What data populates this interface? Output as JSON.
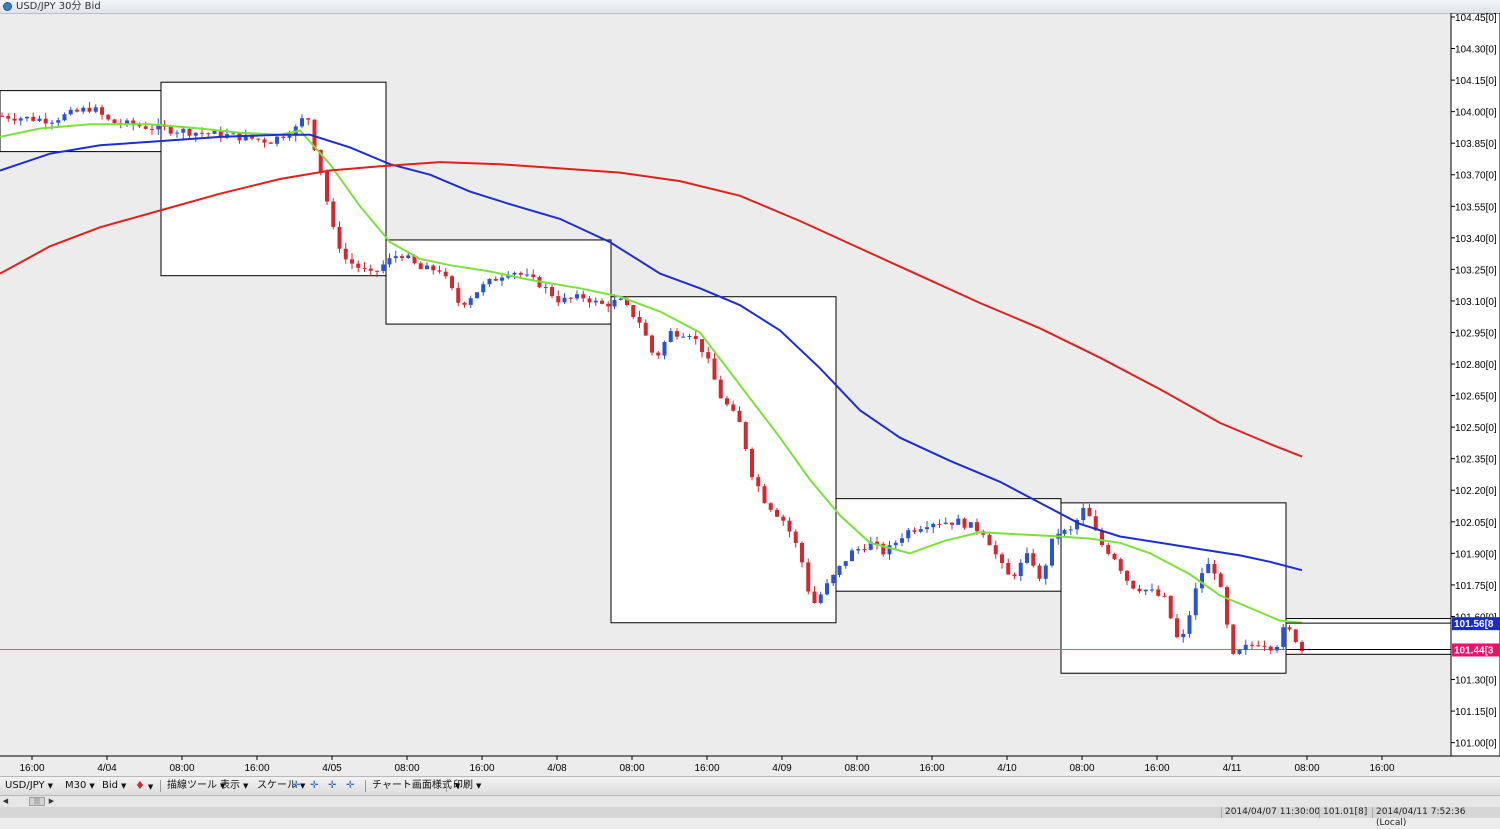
{
  "window": {
    "title": "USD/JPY 30分 Bid"
  },
  "chart_data": {
    "type": "candlestick",
    "title": "USD/JPY 30分 Bid",
    "y_ticks": [
      "104.45[0]",
      "104.30[0]",
      "104.15[0]",
      "104.00[0]",
      "103.85[0]",
      "103.70[0]",
      "103.55[0]",
      "103.40[0]",
      "103.25[0]",
      "103.10[0]",
      "102.95[0]",
      "102.80[0]",
      "102.65[0]",
      "102.50[0]",
      "102.35[0]",
      "102.20[0]",
      "102.05[0]",
      "101.90[0]",
      "101.75[0]",
      "101.60[0]",
      "101.30[0]",
      "101.15[0]",
      "101.00[0]"
    ],
    "x_ticks": [
      "16:00",
      "4/04",
      "08:00",
      "16:00",
      "4/05",
      "08:00",
      "16:00",
      "4/08",
      "08:00",
      "16:00",
      "4/09",
      "08:00",
      "16:00",
      "4/10",
      "08:00",
      "16:00",
      "4/11",
      "08:00",
      "16:00"
    ],
    "price_labels": [
      {
        "text": "101.56[8",
        "value": 101.568,
        "color": "#1a2ad0"
      },
      {
        "text": "101.44[3",
        "value": 101.443,
        "color": "#f0106a"
      }
    ],
    "current_bid": 101.443,
    "ylim": [
      101.0,
      104.5
    ],
    "grid": false,
    "moving_averages": [
      {
        "color": "#7de03a"
      },
      {
        "color": "#1b2ed6"
      },
      {
        "color": "#e0201a"
      }
    ],
    "sessions": [
      {
        "high": 104.1,
        "low": 103.81
      },
      {
        "high": 104.14,
        "low": 103.22
      },
      {
        "high": 103.39,
        "low": 102.99
      },
      {
        "high": 103.12,
        "low": 101.57
      },
      {
        "high": 102.16,
        "low": 101.72
      },
      {
        "high": 102.14,
        "low": 101.33
      },
      {
        "high": 101.59,
        "low": 101.42
      }
    ],
    "colors": {
      "up": "#2a52d6",
      "down": "#d8262e",
      "background": "#ececec",
      "session_fill": "#ffffff",
      "bid_line": "#ff33ff"
    }
  },
  "toolbar": {
    "items": [
      {
        "label": "USD/JPY",
        "icon": "chevron-down-icon"
      },
      {
        "label": "M30",
        "icon": "chevron-down-icon"
      },
      {
        "label": "Bid",
        "icon": "chevron-down-icon"
      },
      {
        "label": "",
        "icon": "candle-color-icon"
      },
      {
        "label": "描線ツール",
        "icon": "chevron-down-icon"
      },
      {
        "label": "表示",
        "icon": "chevron-down-icon"
      },
      {
        "label": "スケール",
        "icon": "chevron-down-icon"
      },
      {
        "label": "チャート画面様式",
        "icon": "chevron-down-icon"
      },
      {
        "label": "印刷",
        "icon": "chevron-down-icon"
      }
    ]
  },
  "status": {
    "start": "2014/04/07 11:30:00",
    "value": "101.01[8]",
    "end": "2014/04/11 7:52:36 (Local)"
  }
}
